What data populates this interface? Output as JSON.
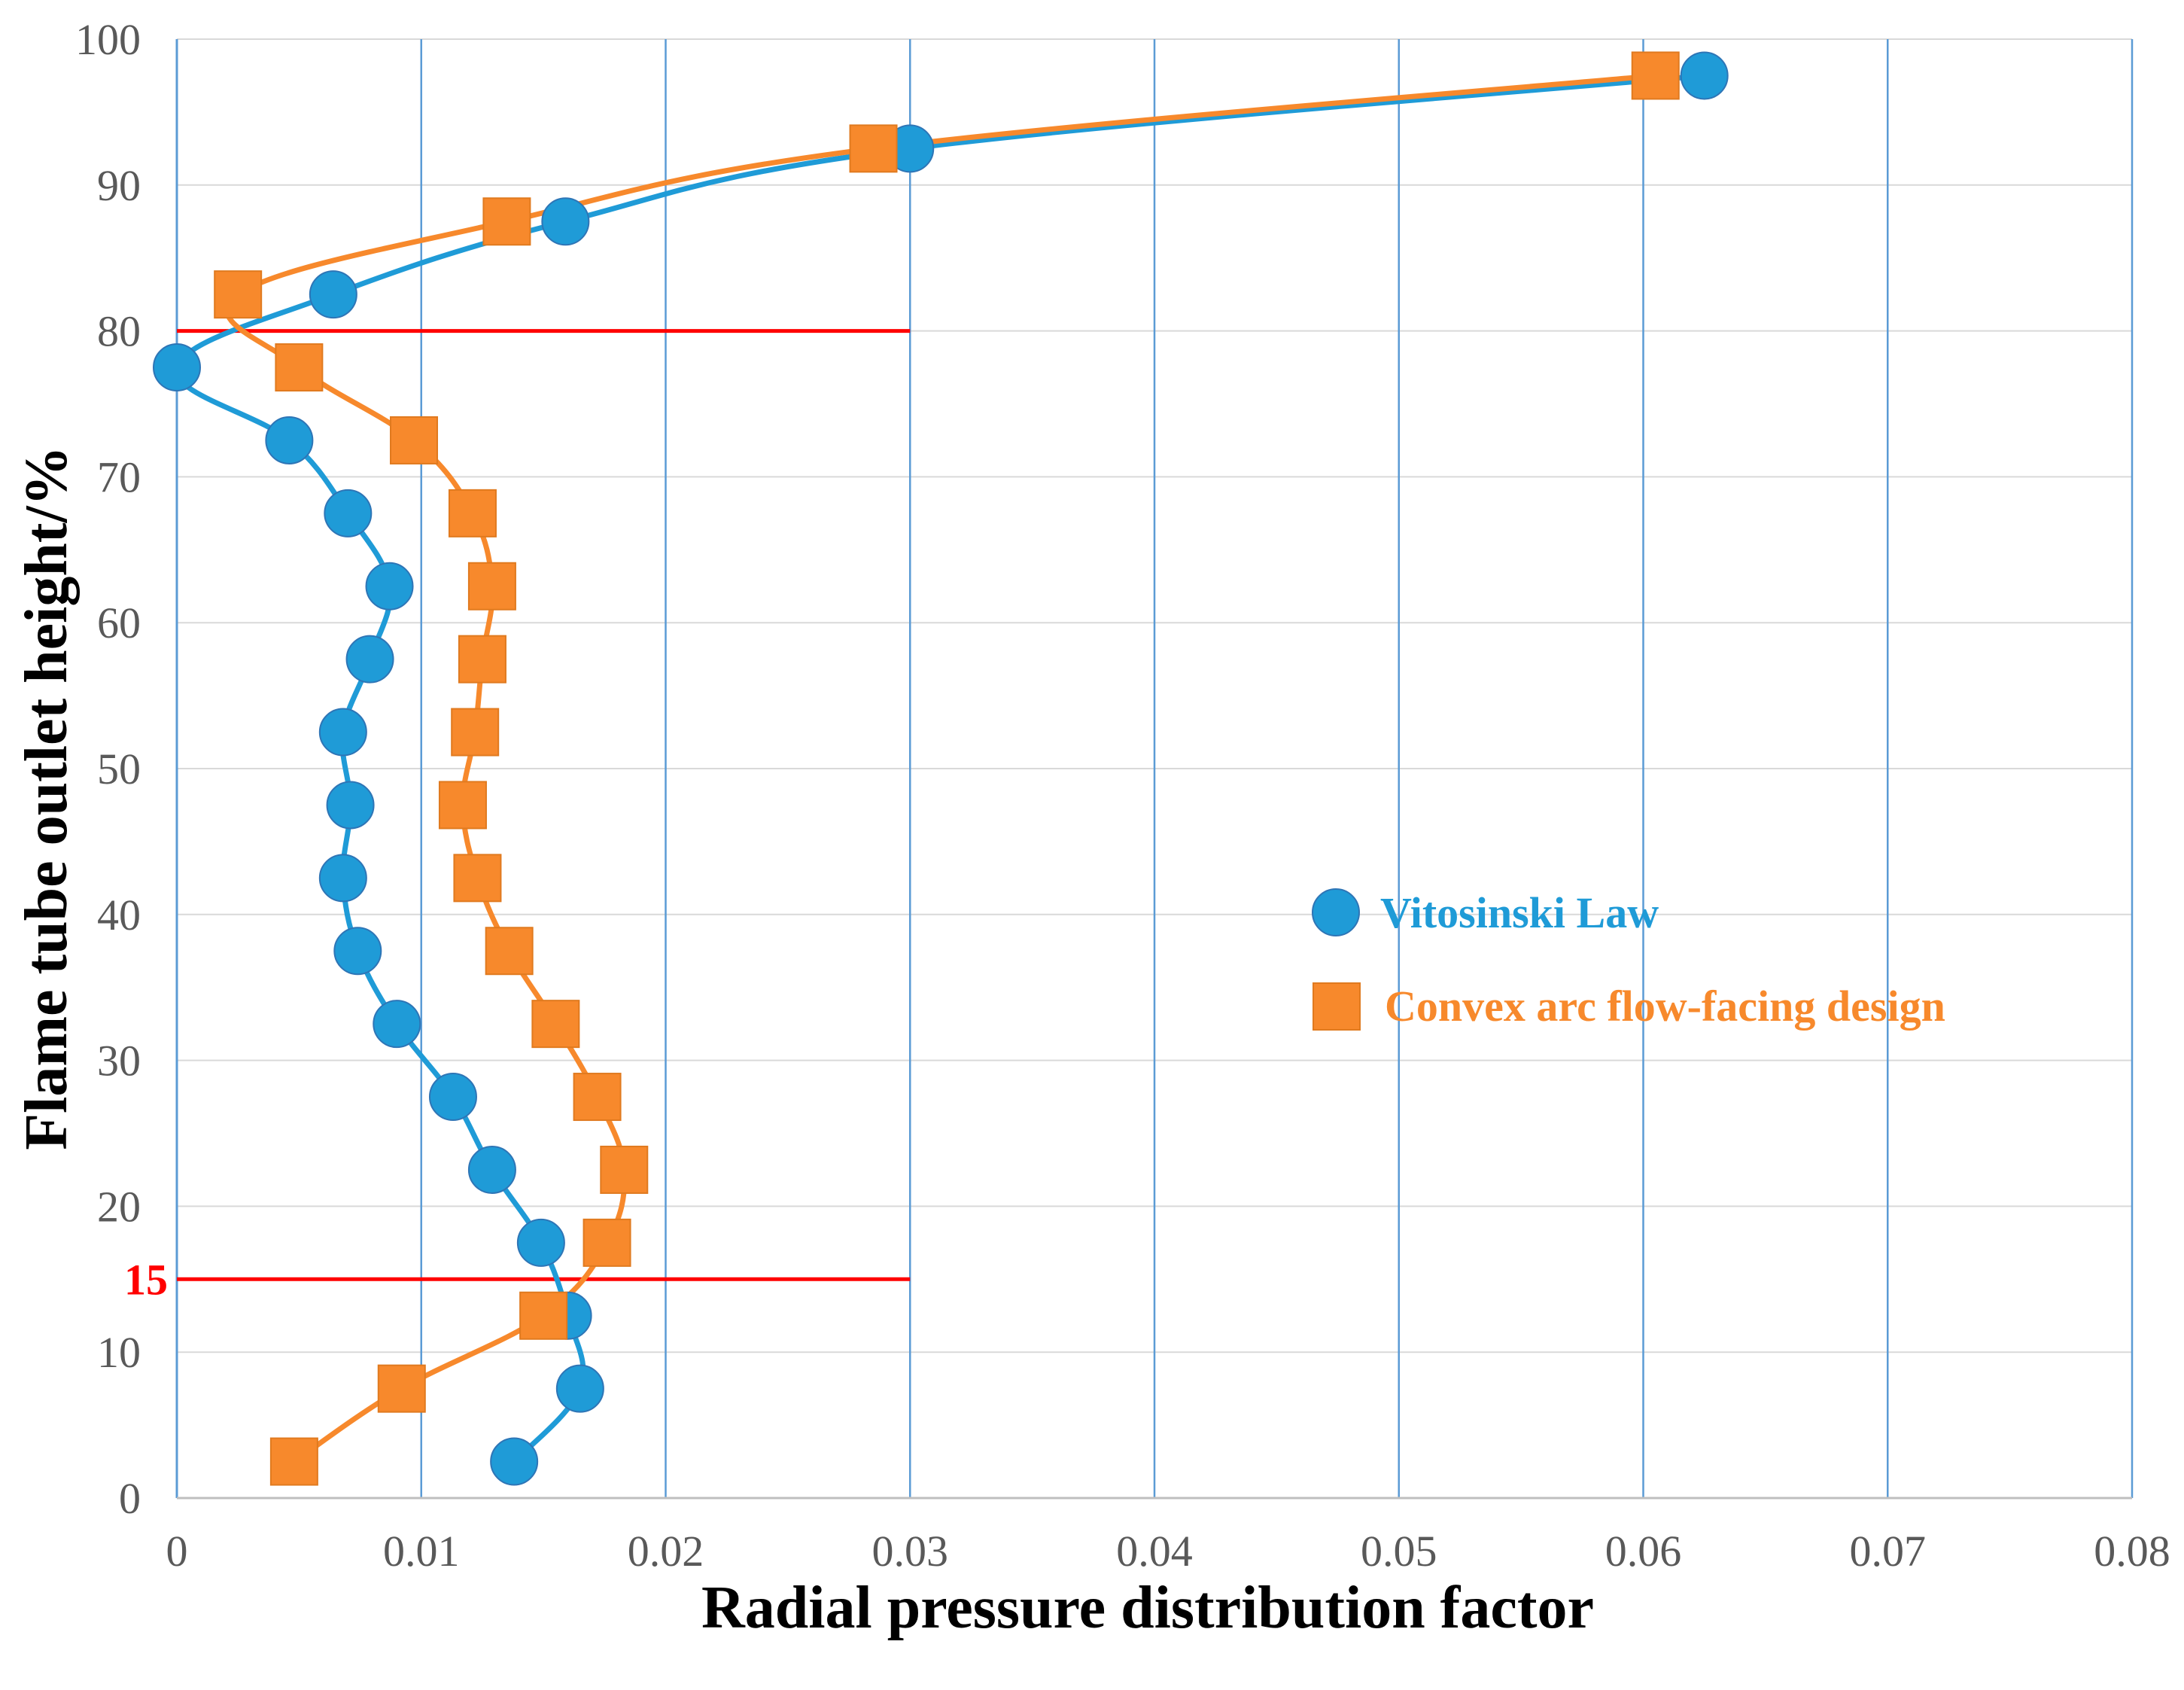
{
  "chart_data": {
    "type": "line",
    "title": "",
    "xlabel": "Radial pressure distribution factor",
    "ylabel": "Flame tube outlet height/%",
    "xlim": [
      0,
      0.08
    ],
    "ylim": [
      0,
      100
    ],
    "x_ticks": [
      "0",
      "0.01",
      "0.02",
      "0.03",
      "0.04",
      "0.05",
      "0.06",
      "0.07",
      "0.08"
    ],
    "y_ticks": [
      "0",
      "10",
      "20",
      "30",
      "40",
      "50",
      "60",
      "70",
      "80",
      "90",
      "100"
    ],
    "x_tick_values": [
      0,
      0.01,
      0.02,
      0.03,
      0.04,
      0.05,
      0.06,
      0.07,
      0.08
    ],
    "y_tick_values": [
      0,
      10,
      20,
      30,
      40,
      50,
      60,
      70,
      80,
      90,
      100
    ],
    "grid": "on",
    "legend_position": "right-middle",
    "series": [
      {
        "name": "Vitosinski Law",
        "marker": "circle",
        "color": "#1F9BD7",
        "points": [
          {
            "x": 0.0138,
            "y": 2.5
          },
          {
            "x": 0.0165,
            "y": 7.5
          },
          {
            "x": 0.016,
            "y": 12.5
          },
          {
            "x": 0.0149,
            "y": 17.5
          },
          {
            "x": 0.0129,
            "y": 22.5
          },
          {
            "x": 0.0113,
            "y": 27.5
          },
          {
            "x": 0.009,
            "y": 32.5
          },
          {
            "x": 0.0074,
            "y": 37.5
          },
          {
            "x": 0.0068,
            "y": 42.5
          },
          {
            "x": 0.0071,
            "y": 47.5
          },
          {
            "x": 0.0068,
            "y": 52.5
          },
          {
            "x": 0.0079,
            "y": 57.5
          },
          {
            "x": 0.0087,
            "y": 62.5
          },
          {
            "x": 0.007,
            "y": 67.5
          },
          {
            "x": 0.0046,
            "y": 72.5
          },
          {
            "x": 0.0,
            "y": 77.5
          },
          {
            "x": 0.0064,
            "y": 82.5
          },
          {
            "x": 0.0159,
            "y": 87.5
          },
          {
            "x": 0.03,
            "y": 92.5
          },
          {
            "x": 0.0625,
            "y": 97.5
          }
        ]
      },
      {
        "name": "Convex arc flow-facing design",
        "marker": "square",
        "color": "#F7892C",
        "points": [
          {
            "x": 0.0048,
            "y": 2.5
          },
          {
            "x": 0.0092,
            "y": 7.5
          },
          {
            "x": 0.015,
            "y": 12.5
          },
          {
            "x": 0.0176,
            "y": 17.5
          },
          {
            "x": 0.0183,
            "y": 22.5
          },
          {
            "x": 0.0172,
            "y": 27.5
          },
          {
            "x": 0.0155,
            "y": 32.5
          },
          {
            "x": 0.0136,
            "y": 37.5
          },
          {
            "x": 0.0123,
            "y": 42.5
          },
          {
            "x": 0.0117,
            "y": 47.5
          },
          {
            "x": 0.0122,
            "y": 52.5
          },
          {
            "x": 0.0125,
            "y": 57.5
          },
          {
            "x": 0.0129,
            "y": 62.5
          },
          {
            "x": 0.0121,
            "y": 67.5
          },
          {
            "x": 0.0097,
            "y": 72.5
          },
          {
            "x": 0.005,
            "y": 77.5
          },
          {
            "x": 0.0025,
            "y": 82.5
          },
          {
            "x": 0.0135,
            "y": 87.5
          },
          {
            "x": 0.0285,
            "y": 92.5
          },
          {
            "x": 0.0605,
            "y": 97.5
          }
        ]
      }
    ],
    "reference_lines": [
      {
        "y": 80,
        "x_from": 0,
        "x_to": 0.03,
        "color": "#FF0000",
        "label": ""
      },
      {
        "y": 15,
        "x_from": 0,
        "x_to": 0.03,
        "color": "#FF0000",
        "label": "15"
      }
    ]
  }
}
